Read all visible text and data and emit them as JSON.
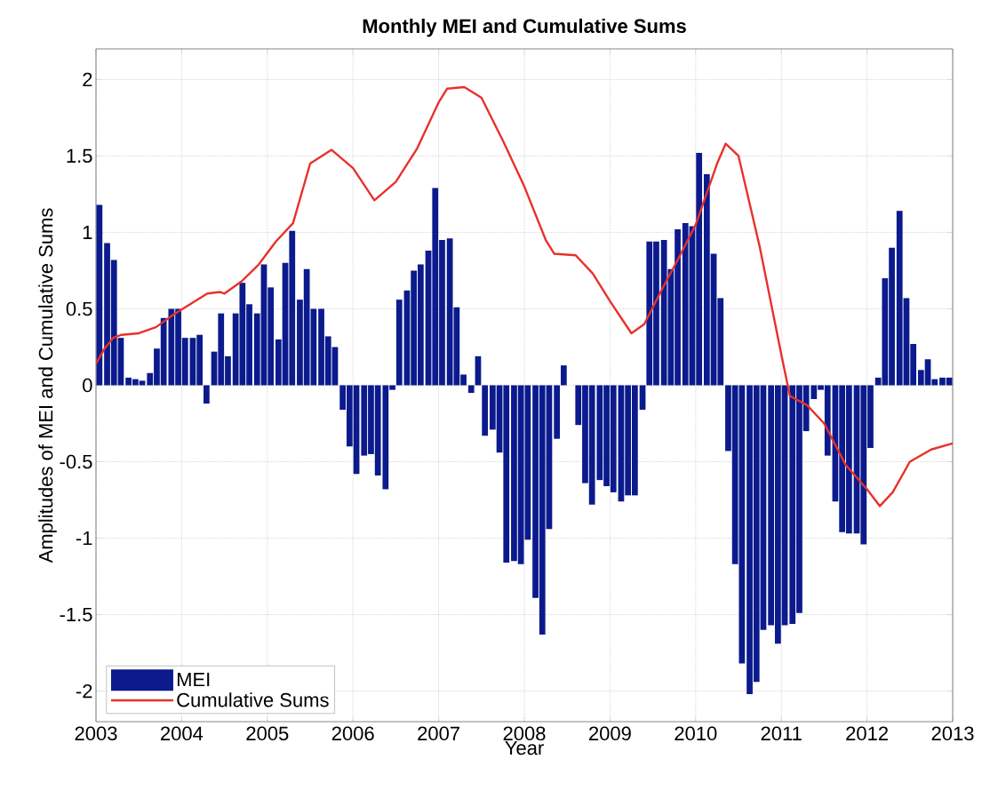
{
  "chart_data": {
    "type": "bar",
    "title": "Monthly MEI and Cumulative Sums",
    "xlabel": "Year",
    "ylabel": "Amplitudes of MEI and Cumulative Sums",
    "x": [
      2003.04,
      2003.13,
      2003.21,
      2003.29,
      2003.38,
      2003.46,
      2003.54,
      2003.63,
      2003.71,
      2003.79,
      2003.88,
      2003.96,
      2004.04,
      2004.13,
      2004.21,
      2004.29,
      2004.38,
      2004.46,
      2004.54,
      2004.63,
      2004.71,
      2004.79,
      2004.88,
      2004.96,
      2005.04,
      2005.13,
      2005.21,
      2005.29,
      2005.38,
      2005.46,
      2005.54,
      2005.63,
      2005.71,
      2005.79,
      2005.88,
      2005.96,
      2006.04,
      2006.13,
      2006.21,
      2006.29,
      2006.38,
      2006.46,
      2006.54,
      2006.63,
      2006.71,
      2006.79,
      2006.88,
      2006.96,
      2007.04,
      2007.13,
      2007.21,
      2007.29,
      2007.38,
      2007.46,
      2007.54,
      2007.63,
      2007.71,
      2007.79,
      2007.88,
      2007.96,
      2008.04,
      2008.13,
      2008.21,
      2008.29,
      2008.38,
      2008.46,
      2008.54,
      2008.63,
      2008.71,
      2008.79,
      2008.88,
      2008.96,
      2009.04,
      2009.13,
      2009.21,
      2009.29,
      2009.38,
      2009.46,
      2009.54,
      2009.63,
      2009.71,
      2009.79,
      2009.88,
      2009.96,
      2010.04,
      2010.13,
      2010.21,
      2010.29,
      2010.38,
      2010.46,
      2010.54,
      2010.63,
      2010.71,
      2010.79,
      2010.88,
      2010.96,
      2011.04,
      2011.13,
      2011.21,
      2011.29,
      2011.38,
      2011.46,
      2011.54,
      2011.63,
      2011.71,
      2011.79,
      2011.88,
      2011.96,
      2012.04,
      2012.13,
      2012.21,
      2012.29,
      2012.38,
      2012.46,
      2012.54,
      2012.63,
      2012.71,
      2012.79,
      2012.88,
      2012.96
    ],
    "series": [
      {
        "name": "MEI",
        "color": "#0b1a8c",
        "values": [
          1.18,
          0.93,
          0.82,
          0.31,
          0.05,
          0.04,
          0.03,
          0.08,
          0.24,
          0.44,
          0.5,
          0.5,
          0.31,
          0.31,
          0.33,
          -0.12,
          0.22,
          0.47,
          0.19,
          0.47,
          0.67,
          0.53,
          0.47,
          0.79,
          0.64,
          0.3,
          0.8,
          1.01,
          0.56,
          0.76,
          0.5,
          0.5,
          0.32,
          0.25,
          -0.16,
          -0.4,
          -0.58,
          -0.46,
          -0.45,
          -0.59,
          -0.68,
          -0.03,
          0.56,
          0.62,
          0.75,
          0.79,
          0.88,
          1.29,
          0.95,
          0.96,
          0.51,
          0.07,
          -0.05,
          0.19,
          -0.33,
          -0.29,
          -0.44,
          -1.16,
          -1.15,
          -1.17,
          -1.01,
          -1.39,
          -1.63,
          -0.94,
          -0.35,
          0.13,
          null,
          -0.26,
          -0.64,
          -0.78,
          -0.62,
          -0.66,
          -0.7,
          -0.76,
          -0.72,
          -0.72,
          -0.16,
          0.94,
          0.94,
          0.95,
          0.76,
          1.02,
          1.06,
          1.04,
          1.52,
          1.38,
          0.86,
          0.57,
          -0.43,
          -1.17,
          -1.82,
          -2.02,
          -1.94,
          -1.6,
          -1.57,
          -1.69,
          -1.57,
          -1.56,
          -1.49,
          -0.3,
          -0.09,
          -0.03,
          -0.46,
          -0.76,
          -0.96,
          -0.97,
          -0.97,
          -1.04,
          -0.41,
          0.05,
          0.7,
          0.9,
          1.14,
          0.57,
          0.27,
          0.1,
          0.17,
          0.04,
          0.05,
          0.05
        ]
      },
      {
        "name": "Cumulative Sums",
        "type": "line",
        "color": "#e8312a",
        "x": [
          2003.0,
          2003.1,
          2003.2,
          2003.3,
          2003.5,
          2003.7,
          2003.9,
          2004.1,
          2004.3,
          2004.45,
          2004.5,
          2004.7,
          2004.9,
          2005.1,
          2005.3,
          2005.5,
          2005.75,
          2006.0,
          2006.25,
          2006.5,
          2006.75,
          2007.0,
          2007.1,
          2007.3,
          2007.5,
          2007.75,
          2008.0,
          2008.25,
          2008.35,
          2008.6,
          2008.8,
          2009.0,
          2009.25,
          2009.4,
          2009.6,
          2009.8,
          2010.0,
          2010.25,
          2010.35,
          2010.5,
          2010.75,
          2011.0,
          2011.1,
          2011.3,
          2011.5,
          2011.75,
          2012.0,
          2012.15,
          2012.3,
          2012.5,
          2012.75,
          2013.0
        ],
        "values": [
          0.14,
          0.24,
          0.31,
          0.33,
          0.34,
          0.38,
          0.46,
          0.53,
          0.6,
          0.61,
          0.6,
          0.68,
          0.79,
          0.94,
          1.06,
          1.45,
          1.54,
          1.42,
          1.21,
          1.33,
          1.55,
          1.85,
          1.94,
          1.95,
          1.88,
          1.6,
          1.3,
          0.95,
          0.86,
          0.85,
          0.73,
          0.55,
          0.34,
          0.4,
          0.62,
          0.83,
          1.05,
          1.45,
          1.58,
          1.5,
          0.9,
          0.2,
          -0.07,
          -0.13,
          -0.25,
          -0.52,
          -0.68,
          -0.79,
          -0.7,
          -0.5,
          -0.42,
          -0.38
        ]
      }
    ],
    "xlim": [
      2003,
      2013
    ],
    "xticks": [
      2003,
      2004,
      2005,
      2006,
      2007,
      2008,
      2009,
      2010,
      2011,
      2012,
      2013
    ],
    "ylim": [
      -2.2,
      2.2
    ],
    "yticks": [
      -2,
      -1.5,
      -1,
      -0.5,
      0,
      0.5,
      1,
      1.5,
      2
    ],
    "grid": true,
    "legend": "bottom left",
    "line_style": "solid"
  }
}
